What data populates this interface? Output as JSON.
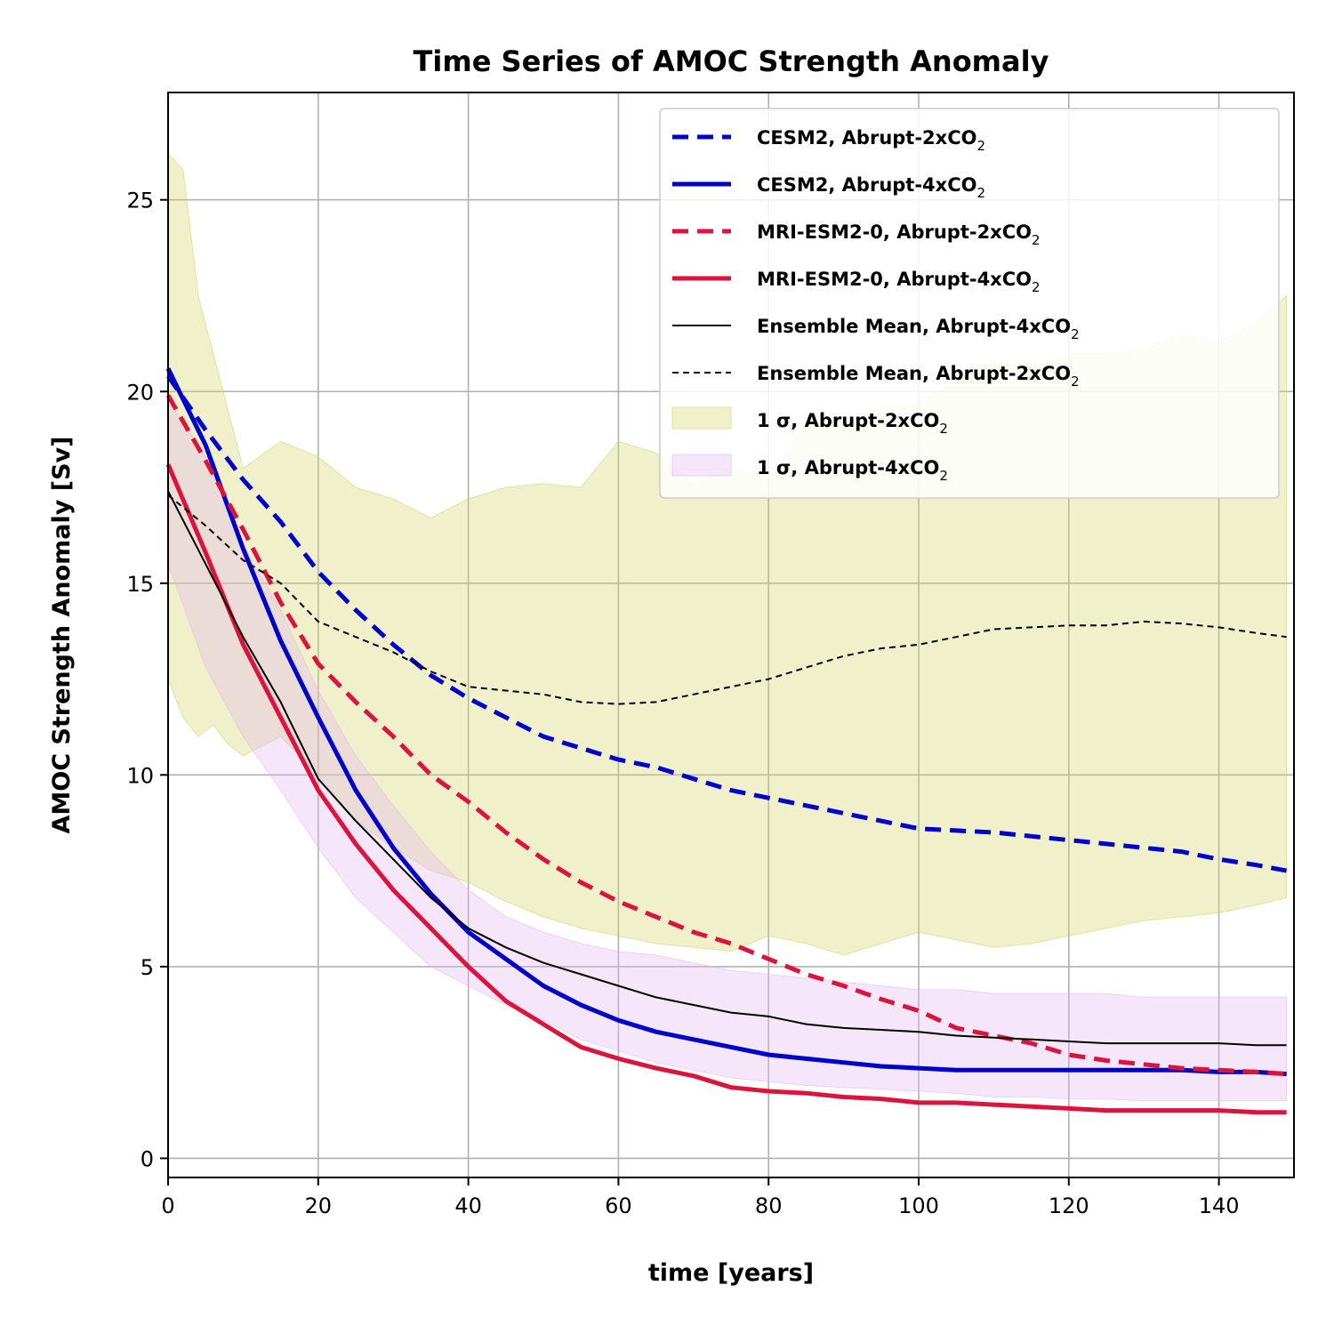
{
  "chart_data": {
    "type": "line",
    "title": "Time Series of AMOC Strength Anomaly",
    "xlabel": "time [years]",
    "ylabel": "AMOC Strength Anomaly [Sv]",
    "xlim": [
      0,
      150
    ],
    "ylim": [
      -0.5,
      27.8
    ],
    "xticks": [
      0,
      20,
      40,
      60,
      80,
      100,
      120,
      140
    ],
    "yticks": [
      0,
      5,
      10,
      15,
      20,
      25
    ],
    "grid": true,
    "legend_position": "top-right",
    "series": [
      {
        "name": "CESM2, Abrupt-2xCO₂",
        "label_main": "CESM2, Abrupt-2xCO",
        "color": "#0000cc",
        "style": "dashed-thick",
        "x": [
          0,
          5,
          10,
          15,
          20,
          25,
          30,
          35,
          40,
          45,
          50,
          55,
          60,
          65,
          70,
          75,
          80,
          85,
          90,
          95,
          100,
          105,
          110,
          115,
          120,
          125,
          130,
          135,
          140,
          145,
          149
        ],
        "y": [
          20.4,
          19.0,
          17.7,
          16.6,
          15.3,
          14.3,
          13.4,
          12.6,
          12.0,
          11.5,
          11.0,
          10.7,
          10.4,
          10.2,
          9.9,
          9.6,
          9.4,
          9.2,
          9.0,
          8.8,
          8.6,
          8.55,
          8.5,
          8.4,
          8.3,
          8.2,
          8.1,
          8.0,
          7.8,
          7.65,
          7.5
        ]
      },
      {
        "name": "CESM2, Abrupt-4xCO₂",
        "label_main": "CESM2, Abrupt-4xCO",
        "color": "#0000cc",
        "style": "solid-thick",
        "x": [
          0,
          5,
          10,
          15,
          20,
          25,
          30,
          35,
          40,
          45,
          50,
          55,
          60,
          65,
          70,
          75,
          80,
          85,
          90,
          95,
          100,
          105,
          110,
          115,
          120,
          125,
          130,
          135,
          140,
          145,
          149
        ],
        "y": [
          20.6,
          18.6,
          15.9,
          13.5,
          11.5,
          9.6,
          8.1,
          6.9,
          5.9,
          5.2,
          4.5,
          4.0,
          3.6,
          3.3,
          3.1,
          2.9,
          2.7,
          2.6,
          2.5,
          2.4,
          2.35,
          2.3,
          2.3,
          2.3,
          2.3,
          2.3,
          2.3,
          2.3,
          2.25,
          2.25,
          2.2
        ]
      },
      {
        "name": "MRI-ESM2-0, Abrupt-2xCO₂",
        "label_main": "MRI-ESM2-0, Abrupt-2xCO",
        "color": "#dc143c",
        "style": "dashed-thick",
        "x": [
          0,
          5,
          10,
          15,
          20,
          25,
          30,
          35,
          40,
          45,
          50,
          55,
          60,
          65,
          70,
          75,
          80,
          85,
          90,
          95,
          100,
          105,
          110,
          115,
          120,
          125,
          130,
          135,
          140,
          145,
          149
        ],
        "y": [
          19.9,
          18.2,
          16.4,
          14.5,
          12.9,
          11.9,
          11.0,
          10.0,
          9.3,
          8.5,
          7.8,
          7.2,
          6.7,
          6.3,
          5.9,
          5.6,
          5.2,
          4.8,
          4.5,
          4.15,
          3.85,
          3.4,
          3.2,
          3.0,
          2.7,
          2.55,
          2.45,
          2.35,
          2.3,
          2.25,
          2.2
        ]
      },
      {
        "name": "MRI-ESM2-0, Abrupt-4xCO₂",
        "label_main": "MRI-ESM2-0, Abrupt-4xCO",
        "color": "#dc143c",
        "style": "solid-thick",
        "x": [
          0,
          5,
          10,
          15,
          20,
          25,
          30,
          35,
          40,
          45,
          50,
          55,
          60,
          65,
          70,
          75,
          80,
          85,
          90,
          95,
          100,
          105,
          110,
          115,
          120,
          125,
          130,
          135,
          140,
          145,
          149
        ],
        "y": [
          18.1,
          15.8,
          13.4,
          11.5,
          9.6,
          8.2,
          7.0,
          6.0,
          5.0,
          4.1,
          3.5,
          2.9,
          2.6,
          2.35,
          2.15,
          1.85,
          1.75,
          1.7,
          1.6,
          1.55,
          1.45,
          1.45,
          1.4,
          1.35,
          1.3,
          1.25,
          1.25,
          1.25,
          1.25,
          1.2,
          1.2
        ]
      },
      {
        "name": "Ensemble Mean, Abrupt-4xCO₂",
        "label_main": "Ensemble Mean, Abrupt-4xCO",
        "color": "#000000",
        "style": "solid-thin",
        "x": [
          0,
          5,
          10,
          15,
          20,
          25,
          30,
          35,
          40,
          45,
          50,
          55,
          60,
          65,
          70,
          75,
          80,
          85,
          90,
          95,
          100,
          105,
          110,
          115,
          120,
          125,
          130,
          135,
          140,
          145,
          149
        ],
        "y": [
          17.4,
          15.5,
          13.6,
          11.9,
          9.9,
          8.8,
          7.8,
          6.8,
          6.0,
          5.5,
          5.1,
          4.8,
          4.5,
          4.2,
          4.0,
          3.8,
          3.7,
          3.5,
          3.4,
          3.35,
          3.3,
          3.2,
          3.15,
          3.1,
          3.05,
          3.0,
          3.0,
          3.0,
          3.0,
          2.95,
          2.95
        ]
      },
      {
        "name": "Ensemble Mean, Abrupt-2xCO₂",
        "label_main": "Ensemble Mean, Abrupt-2xCO",
        "color": "#000000",
        "style": "dashed-thin",
        "x": [
          0,
          5,
          10,
          15,
          20,
          25,
          30,
          35,
          40,
          45,
          50,
          55,
          60,
          65,
          70,
          75,
          80,
          85,
          90,
          95,
          100,
          105,
          110,
          115,
          120,
          125,
          130,
          135,
          140,
          145,
          149
        ],
        "y": [
          17.3,
          16.5,
          15.6,
          15.0,
          14.0,
          13.6,
          13.2,
          12.7,
          12.3,
          12.2,
          12.1,
          11.9,
          11.85,
          11.9,
          12.1,
          12.3,
          12.5,
          12.8,
          13.1,
          13.3,
          13.4,
          13.6,
          13.8,
          13.85,
          13.9,
          13.9,
          14.0,
          13.95,
          13.85,
          13.7,
          13.6
        ]
      }
    ],
    "bands": [
      {
        "name": "1 σ, Abrupt-2xCO₂",
        "label_main": "1 σ, Abrupt-2xCO",
        "color": "#d4d46a",
        "opacity": 0.35,
        "x": [
          0,
          2,
          4,
          6,
          8,
          10,
          15,
          20,
          25,
          30,
          35,
          40,
          45,
          50,
          55,
          60,
          65,
          70,
          75,
          80,
          85,
          90,
          95,
          100,
          105,
          110,
          115,
          120,
          125,
          130,
          135,
          140,
          145,
          149
        ],
        "upper": [
          26.2,
          25.8,
          22.5,
          21.0,
          19.5,
          18.0,
          18.7,
          18.3,
          17.5,
          17.2,
          16.7,
          17.2,
          17.5,
          17.6,
          17.5,
          18.7,
          18.4,
          17.6,
          18.0,
          17.7,
          19.2,
          19.1,
          19.6,
          19.7,
          20.3,
          20.8,
          20.6,
          21.0,
          21.0,
          21.1,
          21.5,
          21.3,
          21.8,
          22.5
        ],
        "lower": [
          12.5,
          11.5,
          11.0,
          11.3,
          10.8,
          10.5,
          11.0,
          10.0,
          8.8,
          8.1,
          7.5,
          7.2,
          6.7,
          6.3,
          6.0,
          5.8,
          5.6,
          5.5,
          5.4,
          5.8,
          5.6,
          5.3,
          5.6,
          5.9,
          5.7,
          5.5,
          5.6,
          5.8,
          6.0,
          6.2,
          6.3,
          6.4,
          6.6,
          6.8
        ]
      },
      {
        "name": "1 σ, Abrupt-4xCO₂",
        "label_main": "1 σ, Abrupt-4xCO",
        "color": "#e2b8f0",
        "opacity": 0.35,
        "x": [
          0,
          5,
          10,
          15,
          20,
          25,
          30,
          35,
          40,
          45,
          50,
          55,
          60,
          65,
          70,
          75,
          80,
          85,
          90,
          95,
          100,
          105,
          110,
          115,
          120,
          125,
          130,
          135,
          140,
          145,
          149
        ],
        "upper": [
          19.8,
          18.3,
          16.0,
          14.3,
          12.2,
          10.5,
          9.2,
          8.0,
          7.0,
          6.3,
          5.9,
          5.6,
          5.4,
          5.3,
          5.1,
          4.9,
          4.8,
          4.7,
          4.6,
          4.5,
          4.4,
          4.4,
          4.3,
          4.3,
          4.3,
          4.3,
          4.2,
          4.2,
          4.2,
          4.2,
          4.2
        ],
        "lower": [
          15.5,
          12.8,
          11.0,
          9.6,
          8.1,
          6.8,
          5.9,
          5.0,
          4.5,
          4.0,
          3.6,
          3.1,
          2.8,
          2.5,
          2.3,
          2.1,
          2.0,
          1.9,
          1.85,
          1.8,
          1.75,
          1.7,
          1.6,
          1.6,
          1.55,
          1.55,
          1.5,
          1.5,
          1.5,
          1.5,
          1.5
        ]
      }
    ]
  }
}
